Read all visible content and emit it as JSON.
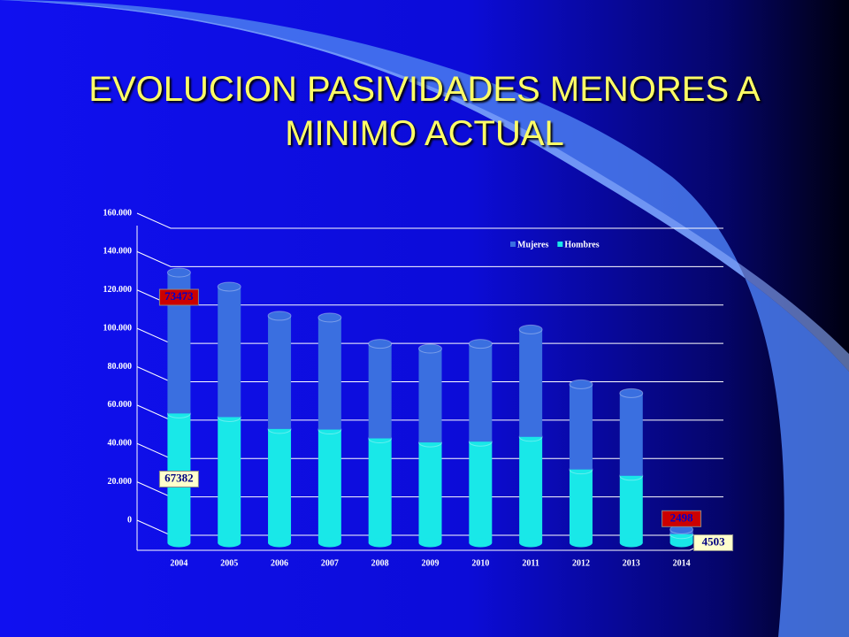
{
  "chart_data": {
    "type": "stacked_bar",
    "title": "EVOLUCION PASIVIDADES MENORES A MINIMO ACTUAL",
    "categories": [
      "2004",
      "2005",
      "2006",
      "2007",
      "2008",
      "2009",
      "2010",
      "2011",
      "2012",
      "2013",
      "2014"
    ],
    "series": [
      {
        "name": "Hombres",
        "color": "#19e8e8",
        "values": [
          67382,
          65500,
          59300,
          59000,
          54400,
          52300,
          52700,
          55200,
          38200,
          34900,
          4503
        ],
        "value_labels": [
          "67382",
          null,
          null,
          null,
          null,
          null,
          null,
          null,
          null,
          null,
          "4503"
        ]
      },
      {
        "name": "Mujeres",
        "color": "#3a6fe0",
        "values": [
          73473,
          68000,
          59000,
          58400,
          49300,
          48900,
          51000,
          56000,
          44400,
          43100,
          2498
        ],
        "value_labels": [
          "73473",
          null,
          null,
          null,
          null,
          null,
          null,
          null,
          null,
          null,
          "2498"
        ]
      }
    ],
    "ylim": [
      0,
      160000
    ],
    "yticks": [
      0,
      {
        "value": 20000,
        "label": "20.000"
      },
      {
        "value": 40000,
        "label": "40.000"
      },
      {
        "value": 60000,
        "label": "60.000"
      },
      {
        "value": 80000,
        "label": "80.000"
      },
      {
        "value": 100000,
        "label": "100.000"
      },
      {
        "value": 120000,
        "label": "120.000"
      },
      {
        "value": 140000,
        "label": "140.000"
      },
      {
        "value": 160000,
        "label": "160.000"
      }
    ],
    "grid": true,
    "legend": "top-right"
  }
}
